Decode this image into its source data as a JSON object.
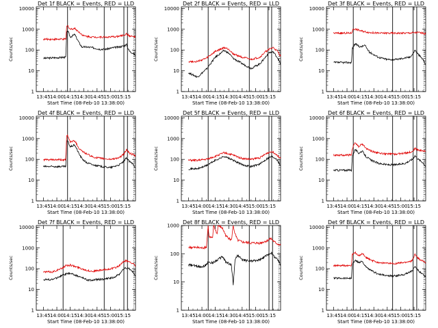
{
  "colors": {
    "events": "#000000",
    "lld": "#e00000",
    "axis": "#000000"
  },
  "chart_data": [
    {
      "type": "line",
      "title": "Det 1f BLACK = Events, RED = LLD",
      "xlabel": "Start Time (08-Feb-10 13:38:00)",
      "ylabel": "Counts/sec",
      "x_ticks": [
        "13:45",
        "14:00",
        "14:15",
        "14:30",
        "14:45",
        "15:00",
        "15:15"
      ],
      "y_ticks": [
        "1",
        "10",
        "100",
        "1000",
        "10000"
      ],
      "xlim_min": [
        -8,
        103
      ],
      "ylim": [
        1,
        12000
      ],
      "y_scale": "log",
      "vlines_min": [
        27,
        68,
        90,
        94,
        101
      ],
      "series": [
        {
          "name": "Events",
          "color": "#000000",
          "x": [
            0,
            25,
            26,
            27,
            30,
            35,
            40,
            43,
            48,
            55,
            63,
            70,
            78,
            85,
            90,
            93,
            96,
            100,
            103
          ],
          "y": [
            40,
            45,
            600,
            900,
            420,
            560,
            220,
            140,
            140,
            130,
            110,
            110,
            130,
            140,
            160,
            180,
            90,
            70,
            55
          ]
        },
        {
          "name": "LLD",
          "color": "#e00000",
          "x": [
            0,
            25,
            26,
            27,
            30,
            35,
            40,
            45,
            55,
            65,
            75,
            85,
            90,
            93,
            96,
            100,
            103
          ],
          "y": [
            330,
            330,
            1300,
            1500,
            1000,
            1100,
            720,
            480,
            420,
            420,
            420,
            460,
            520,
            600,
            480,
            440,
            420
          ]
        }
      ]
    },
    {
      "type": "line",
      "title": "Det 2f BLACK = Events, RED = LLD",
      "xlabel": "Start Time (08-Feb-10 13:38:00)",
      "ylabel": "Counts/sec",
      "x_ticks": [
        "13:45",
        "14:00",
        "14:15",
        "14:30",
        "14:45",
        "15:00",
        "15:15"
      ],
      "y_ticks": [
        "1",
        "10",
        "100",
        "1000",
        "10000"
      ],
      "xlim_min": [
        -8,
        103
      ],
      "ylim": [
        1,
        12000
      ],
      "y_scale": "log",
      "vlines_min": [
        22,
        68,
        89,
        93,
        101
      ],
      "series": [
        {
          "name": "Events",
          "color": "#000000",
          "x": [
            0,
            10,
            20,
            30,
            40,
            45,
            50,
            60,
            70,
            80,
            85,
            90,
            95,
            100,
            103
          ],
          "y": [
            8,
            5,
            12,
            45,
            95,
            70,
            40,
            22,
            13,
            22,
            40,
            75,
            80,
            40,
            20
          ]
        },
        {
          "name": "LLD",
          "color": "#e00000",
          "x": [
            0,
            10,
            20,
            30,
            40,
            45,
            50,
            60,
            70,
            80,
            85,
            90,
            95,
            100,
            103
          ],
          "y": [
            28,
            28,
            40,
            85,
            130,
            110,
            65,
            45,
            35,
            45,
            75,
            110,
            130,
            80,
            50
          ]
        }
      ]
    },
    {
      "type": "line",
      "title": "Det 3f BLACK = Events, RED = LLD",
      "xlabel": "Start Time (08-Feb-10 13:38:00)",
      "ylabel": "Counts/sec",
      "x_ticks": [
        "13:45",
        "14:00",
        "14:15",
        "14:30",
        "14:45",
        "15:00",
        "15:15"
      ],
      "y_ticks": [
        "1",
        "10",
        "100",
        "1000",
        "10000"
      ],
      "xlim_min": [
        -8,
        103
      ],
      "ylim": [
        1,
        12000
      ],
      "y_scale": "log",
      "vlines_min": [
        22,
        66,
        89,
        93,
        101
      ],
      "series": [
        {
          "name": "Events",
          "color": "#000000",
          "x": [
            0,
            20,
            21,
            24,
            30,
            35,
            40,
            50,
            60,
            70,
            80,
            85,
            88,
            91,
            95,
            100,
            103
          ],
          "y": [
            25,
            25,
            120,
            200,
            140,
            170,
            80,
            45,
            35,
            35,
            42,
            45,
            60,
            100,
            60,
            35,
            20
          ]
        },
        {
          "name": "LLD",
          "color": "#e00000",
          "x": [
            0,
            20,
            22,
            25,
            30,
            40,
            50,
            60,
            70,
            80,
            90,
            95,
            100,
            103
          ],
          "y": [
            650,
            650,
            1050,
            1000,
            850,
            700,
            650,
            650,
            650,
            650,
            680,
            700,
            650,
            600
          ]
        }
      ]
    },
    {
      "type": "line",
      "title": "Det 4f BLACK = Events, RED = LLD",
      "xlabel": "Start Time (08-Feb-10 13:38:00)",
      "ylabel": "Counts/sec",
      "x_ticks": [
        "13:45",
        "14:00",
        "14:15",
        "14:30",
        "14:45",
        "15:00",
        "15:15"
      ],
      "y_ticks": [
        "1",
        "10",
        "100",
        "1000",
        "10000"
      ],
      "xlim_min": [
        -8,
        103
      ],
      "ylim": [
        1,
        12000
      ],
      "y_scale": "log",
      "vlines_min": [
        27,
        68,
        90,
        94,
        101
      ],
      "series": [
        {
          "name": "Events",
          "color": "#000000",
          "x": [
            0,
            25,
            26,
            27,
            30,
            35,
            40,
            43,
            48,
            55,
            65,
            75,
            85,
            90,
            93,
            96,
            100,
            103
          ],
          "y": [
            45,
            45,
            700,
            800,
            400,
            500,
            180,
            110,
            70,
            55,
            45,
            40,
            55,
            80,
            120,
            80,
            60,
            40
          ]
        },
        {
          "name": "LLD",
          "color": "#e00000",
          "x": [
            0,
            25,
            26,
            27,
            30,
            35,
            40,
            45,
            55,
            65,
            75,
            85,
            90,
            93,
            96,
            100,
            103
          ],
          "y": [
            95,
            95,
            1300,
            1400,
            700,
            800,
            330,
            220,
            130,
            110,
            100,
            120,
            180,
            300,
            200,
            170,
            140
          ]
        }
      ]
    },
    {
      "type": "line",
      "title": "Det 5f BLACK = Events, RED = LLD",
      "xlabel": "Start Time (08-Feb-10 13:38:00)",
      "ylabel": "Counts/sec",
      "x_ticks": [
        "13:45",
        "14:00",
        "14:15",
        "14:30",
        "14:45",
        "15:00",
        "15:15"
      ],
      "y_ticks": [
        "1",
        "10",
        "100",
        "1000",
        "10000"
      ],
      "xlim_min": [
        -8,
        103
      ],
      "ylim": [
        1,
        12000
      ],
      "y_scale": "log",
      "vlines_min": [
        22,
        68,
        90,
        93,
        101
      ],
      "series": [
        {
          "name": "Events",
          "color": "#000000",
          "x": [
            0,
            10,
            20,
            30,
            40,
            50,
            60,
            70,
            80,
            88,
            93,
            98,
            103
          ],
          "y": [
            35,
            35,
            50,
            90,
            140,
            90,
            55,
            45,
            60,
            110,
            140,
            110,
            50
          ]
        },
        {
          "name": "LLD",
          "color": "#e00000",
          "x": [
            0,
            10,
            20,
            30,
            40,
            50,
            60,
            70,
            80,
            88,
            93,
            98,
            103
          ],
          "y": [
            90,
            90,
            100,
            140,
            210,
            160,
            110,
            100,
            120,
            200,
            240,
            180,
            110
          ]
        }
      ]
    },
    {
      "type": "line",
      "title": "Det 6f BLACK = Events, RED = LLD",
      "xlabel": "Start Time (08-Feb-10 13:38:00)",
      "ylabel": "Counts/sec",
      "x_ticks": [
        "13:45",
        "14:00",
        "14:15",
        "14:30",
        "14:45",
        "15:00",
        "15:15"
      ],
      "y_ticks": [
        "1",
        "10",
        "100",
        "1000",
        "10000"
      ],
      "xlim_min": [
        -8,
        103
      ],
      "ylim": [
        1,
        12000
      ],
      "y_scale": "log",
      "vlines_min": [
        22,
        66,
        89,
        93,
        101
      ],
      "series": [
        {
          "name": "Events",
          "color": "#000000",
          "x": [
            0,
            20,
            21,
            24,
            28,
            32,
            36,
            42,
            50,
            60,
            70,
            80,
            88,
            91,
            95,
            100,
            103
          ],
          "y": [
            30,
            30,
            150,
            300,
            200,
            250,
            140,
            90,
            65,
            55,
            55,
            65,
            100,
            150,
            100,
            70,
            45
          ]
        },
        {
          "name": "LLD",
          "color": "#e00000",
          "x": [
            0,
            20,
            21,
            24,
            28,
            32,
            36,
            42,
            50,
            60,
            70,
            80,
            88,
            91,
            95,
            100,
            103
          ],
          "y": [
            160,
            160,
            350,
            650,
            400,
            550,
            350,
            250,
            200,
            180,
            180,
            200,
            240,
            330,
            280,
            260,
            240
          ]
        }
      ]
    },
    {
      "type": "line",
      "title": "Det 7f BLACK = Events, RED = LLD",
      "xlabel": "Start Time (08-Feb-10 13:38:00)",
      "ylabel": "Counts/sec",
      "x_ticks": [
        "13:45",
        "14:00",
        "14:15",
        "14:30",
        "14:45",
        "15:00",
        "15:15"
      ],
      "y_ticks": [
        "1",
        "10",
        "100",
        "1000",
        "10000"
      ],
      "xlim_min": [
        -8,
        103
      ],
      "ylim": [
        1,
        12000
      ],
      "y_scale": "log",
      "vlines_min": [
        22,
        68,
        90,
        94,
        101
      ],
      "series": [
        {
          "name": "Events",
          "color": "#000000",
          "x": [
            0,
            10,
            20,
            25,
            30,
            40,
            50,
            55,
            60,
            70,
            80,
            85,
            88,
            92,
            96,
            100,
            103
          ],
          "y": [
            30,
            30,
            45,
            55,
            60,
            42,
            28,
            28,
            30,
            32,
            40,
            55,
            80,
            110,
            100,
            70,
            45
          ]
        },
        {
          "name": "LLD",
          "color": "#e00000",
          "x": [
            0,
            10,
            20,
            25,
            30,
            40,
            50,
            55,
            60,
            70,
            80,
            85,
            88,
            92,
            96,
            100,
            103
          ],
          "y": [
            70,
            70,
            100,
            140,
            150,
            110,
            80,
            75,
            80,
            90,
            110,
            140,
            190,
            240,
            220,
            180,
            130
          ]
        }
      ]
    },
    {
      "type": "line",
      "title": "Det 8f BLACK = Events, RED = LLD",
      "xlabel": "Start Time (08-Feb-10 13:38:00)",
      "ylabel": "Counts/sec",
      "x_ticks": [
        "13:45",
        "14:00",
        "14:15",
        "14:30",
        "14:45",
        "15:00",
        "15:15"
      ],
      "y_ticks": [
        "1",
        "10",
        "100",
        "1000"
      ],
      "xlim_min": [
        -8,
        103
      ],
      "ylim": [
        1,
        1000
      ],
      "y_scale": "log",
      "vlines_min": [
        22,
        68,
        90,
        94,
        101
      ],
      "series": [
        {
          "name": "Events",
          "color": "#000000",
          "x": [
            0,
            15,
            20,
            22,
            24,
            28,
            32,
            38,
            42,
            48,
            50,
            52,
            55,
            60,
            70,
            80,
            88,
            92,
            96,
            100,
            103
          ],
          "y": [
            40,
            35,
            40,
            55,
            45,
            50,
            60,
            80,
            50,
            40,
            8,
            60,
            90,
            60,
            55,
            60,
            90,
            110,
            80,
            60,
            40
          ]
        },
        {
          "name": "LLD",
          "color": "#e00000",
          "x": [
            0,
            15,
            20,
            22,
            23,
            27,
            28,
            32,
            33,
            38,
            42,
            48,
            50,
            52,
            55,
            60,
            70,
            80,
            88,
            92,
            96,
            100,
            103
          ],
          "y": [
            170,
            160,
            170,
            1000,
            400,
            350,
            1000,
            500,
            1000,
            800,
            420,
            300,
            1000,
            500,
            300,
            260,
            240,
            240,
            290,
            350,
            260,
            220,
            200
          ]
        }
      ]
    },
    {
      "type": "line",
      "title": "Det 9f BLACK = Events, RED = LLD",
      "xlabel": "Start Time (08-Feb-10 13:38:00)",
      "ylabel": "Counts/sec",
      "x_ticks": [
        "13:45",
        "14:00",
        "14:15",
        "14:30",
        "14:45",
        "15:00",
        "15:15"
      ],
      "y_ticks": [
        "1",
        "10",
        "100",
        "1000",
        "10000"
      ],
      "xlim_min": [
        -8,
        103
      ],
      "ylim": [
        1,
        12000
      ],
      "y_scale": "log",
      "vlines_min": [
        22,
        66,
        89,
        93,
        101
      ],
      "series": [
        {
          "name": "Events",
          "color": "#000000",
          "x": [
            0,
            20,
            21,
            24,
            28,
            32,
            36,
            42,
            50,
            60,
            70,
            80,
            88,
            91,
            95,
            100,
            103
          ],
          "y": [
            35,
            35,
            170,
            250,
            200,
            230,
            120,
            80,
            55,
            45,
            45,
            55,
            80,
            120,
            80,
            55,
            40
          ]
        },
        {
          "name": "LLD",
          "color": "#e00000",
          "x": [
            0,
            20,
            21,
            24,
            28,
            32,
            36,
            42,
            50,
            60,
            70,
            80,
            88,
            91,
            95,
            100,
            103
          ],
          "y": [
            140,
            140,
            500,
            600,
            400,
            550,
            350,
            250,
            200,
            180,
            180,
            200,
            240,
            500,
            300,
            230,
            200
          ]
        }
      ]
    }
  ]
}
